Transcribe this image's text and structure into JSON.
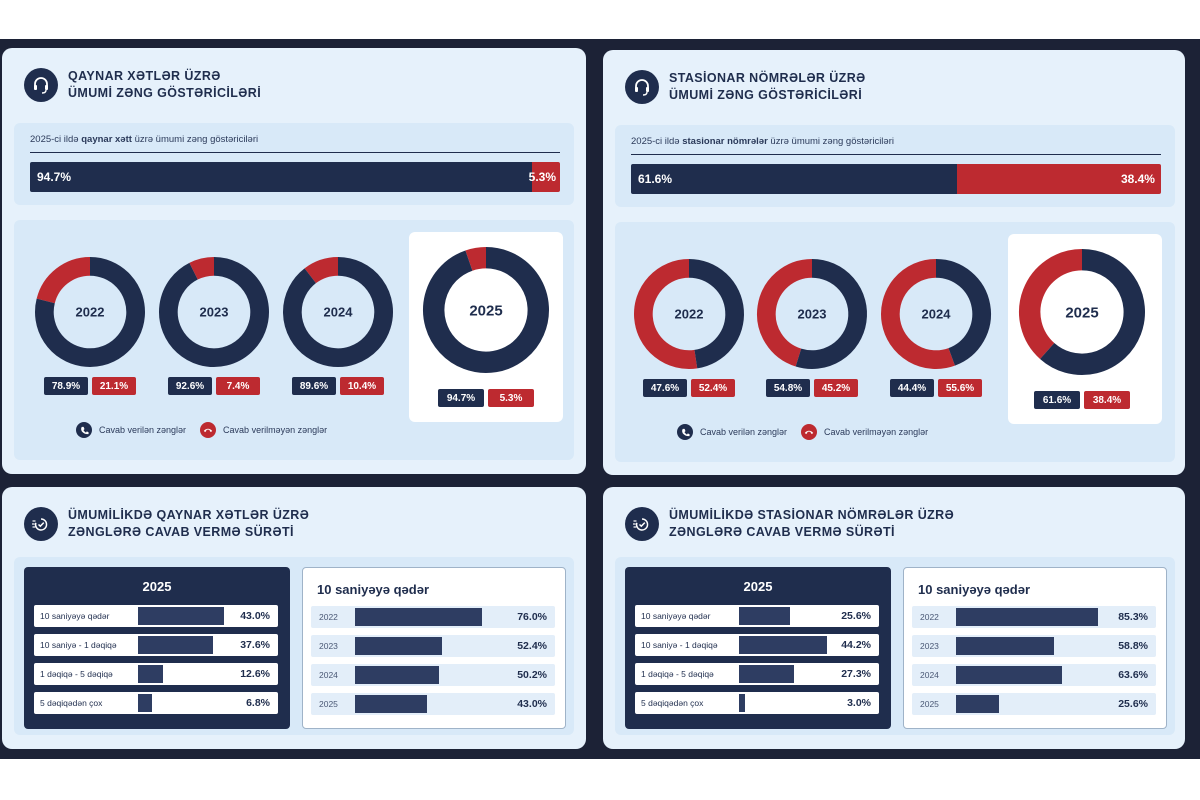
{
  "colors": {
    "answered": "#1f2d4d",
    "unanswered": "#bd2a30",
    "panel": "#e6f1fb",
    "inner": "#d8e9f8"
  },
  "panels": [
    {
      "title_1": "QAYNAR XƏTLƏR ÜZRƏ",
      "title_2": "ÜMUMİ ZƏNG GÖSTƏRİCİLƏRİ",
      "icon": "headset-icon",
      "caption_pre": "2025-ci ildə",
      "caption_bold": "qaynar xətt",
      "caption_post": "üzrə ümumi zəng göstəriciləri",
      "split_a": "94.7%",
      "split_b": "5.3%",
      "legend_answered": "Cavab verilən zənglər",
      "legend_unanswered": "Cavab verilməyən zənglər"
    },
    {
      "title_1": "STASİONAR NÖMRƏLƏR ÜZRƏ",
      "title_2": "ÜMUMİ ZƏNG GÖSTƏRİCİLƏRİ",
      "icon": "headset-icon",
      "caption_pre": "2025-ci ildə",
      "caption_bold": "stasionar nömrələr",
      "caption_post": "üzrə ümumi zəng göstəriciləri",
      "split_a": "61.6%",
      "split_b": "38.4%",
      "legend_answered": "Cavab verilən zənglər",
      "legend_unanswered": "Cavab verilməyən zənglər"
    },
    {
      "title_1": "ÜMUMİLİKDƏ QAYNAR XƏTLƏR ÜZRƏ",
      "title_2": "ZƏNGLƏRƏ CAVAB VERMƏ SÜRƏTİ",
      "icon": "speed-check-icon",
      "left_title": "2025",
      "right_title": "10 saniyəyə qədər"
    },
    {
      "title_1": "ÜMUMİLİKDƏ STASİONAR NÖMRƏLƏR ÜZRƏ",
      "title_2": "ZƏNGLƏRƏ CAVAB VERMƏ SÜRƏTİ",
      "icon": "speed-check-icon",
      "left_title": "2025",
      "right_title": "10 saniyəyə qədər"
    }
  ],
  "chart_data": [
    {
      "type": "pie",
      "title": "QAYNAR XƏTLƏR ÜZRƏ ÜMUMİ ZƏNG GÖSTƏRİCİLƏRİ",
      "categories": [
        "2022",
        "2023",
        "2024",
        "2025"
      ],
      "series": [
        {
          "name": "Cavab verilən zənglər",
          "values": [
            78.9,
            92.6,
            89.6,
            94.7
          ],
          "labels": [
            "78.9%",
            "92.6%",
            "89.6%",
            "94.7%"
          ]
        },
        {
          "name": "Cavab verilməyən zənglər",
          "values": [
            21.1,
            7.4,
            10.4,
            5.3
          ],
          "labels": [
            "21.1%",
            "7.4%",
            "10.4%",
            "5.3%"
          ]
        }
      ],
      "legend": "bottom"
    },
    {
      "type": "pie",
      "title": "STASİONAR NÖMRƏLƏR ÜZRƏ ÜMUMİ ZƏNG GÖSTƏRİCİLƏRİ",
      "categories": [
        "2022",
        "2023",
        "2024",
        "2025"
      ],
      "series": [
        {
          "name": "Cavab verilən zənglər",
          "values": [
            47.6,
            54.8,
            44.4,
            61.6
          ],
          "labels": [
            "47.6%",
            "54.8%",
            "44.4%",
            "61.6%"
          ]
        },
        {
          "name": "Cavab verilməyən zənglər",
          "values": [
            52.4,
            45.2,
            55.6,
            38.4
          ],
          "labels": [
            "52.4%",
            "45.2%",
            "55.6%",
            "38.4%"
          ]
        }
      ],
      "legend": "bottom"
    },
    {
      "type": "bar",
      "title": "2025",
      "categories": [
        "10 saniyəyə qədər",
        "10 saniyə - 1 dəqiqə",
        "1 dəqiqə - 5 dəqiqə",
        "5 dəqiqədən çox"
      ],
      "values": [
        43.0,
        37.6,
        12.6,
        6.8
      ],
      "labels": [
        "43.0%",
        "37.6%",
        "12.6%",
        "6.8%"
      ],
      "ylim": [
        0,
        50
      ]
    },
    {
      "type": "bar",
      "title": "10 saniyəyə qədər",
      "categories": [
        "2022",
        "2023",
        "2024",
        "2025"
      ],
      "values": [
        76.0,
        52.4,
        50.2,
        43.0
      ],
      "labels": [
        "76.0%",
        "52.4%",
        "50.2%",
        "43.0%"
      ],
      "ylim": [
        0,
        90
      ]
    },
    {
      "type": "bar",
      "title": "2025",
      "categories": [
        "10 saniyəyə qədər",
        "10 saniyə - 1 dəqiqə",
        "1 dəqiqə - 5 dəqiqə",
        "5 dəqiqədən çox"
      ],
      "values": [
        25.6,
        44.2,
        27.3,
        3.0
      ],
      "labels": [
        "25.6%",
        "44.2%",
        "27.3%",
        "3.0%"
      ],
      "ylim": [
        0,
        50
      ]
    },
    {
      "type": "bar",
      "title": "10 saniyəyə qədər",
      "categories": [
        "2022",
        "2023",
        "2024",
        "2025"
      ],
      "values": [
        85.3,
        58.8,
        63.6,
        25.6
      ],
      "labels": [
        "85.3%",
        "58.8%",
        "63.6%",
        "25.6%"
      ],
      "ylim": [
        0,
        90
      ]
    }
  ]
}
